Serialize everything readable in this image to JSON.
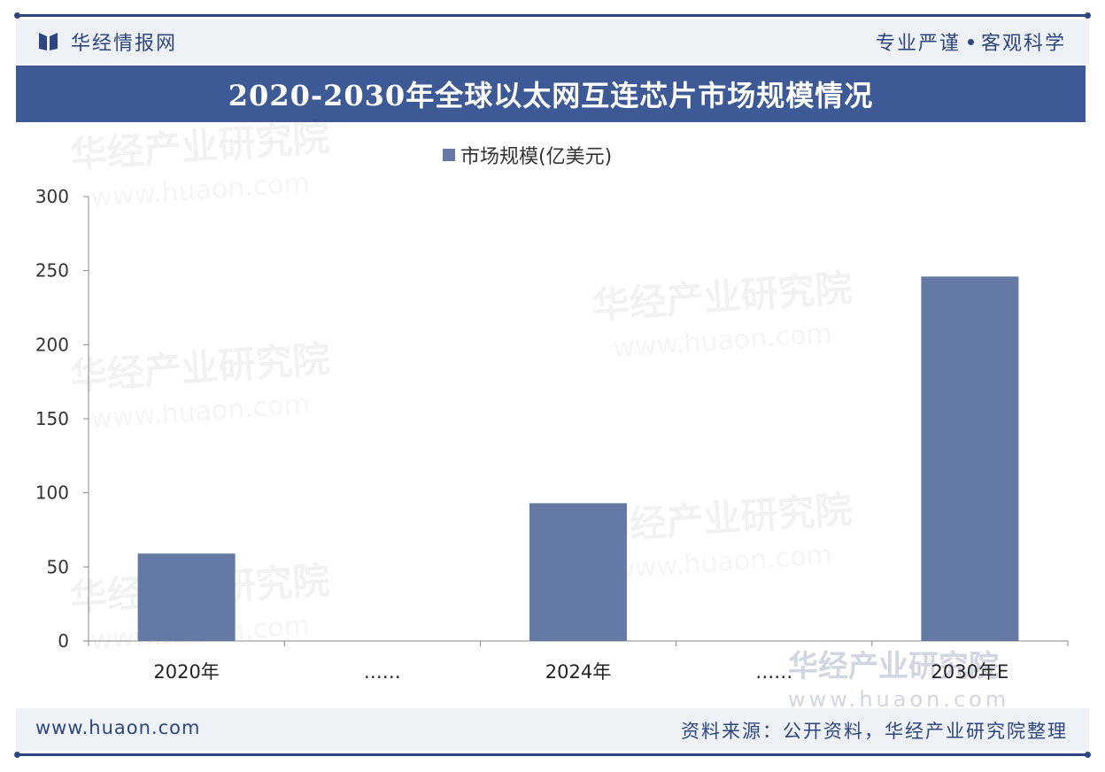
{
  "header": {
    "brand": "华经情报网",
    "slogan_left": "专业严谨",
    "slogan_right": "客观科学"
  },
  "title": "2020-2030年全球以太网互连芯片市场规模情况",
  "watermark": {
    "cn": "华经产业研究院",
    "en": "www.huaon.com"
  },
  "footer": {
    "url": "www.huaon.com",
    "source": "资料来源：公开资料，华经产业研究院整理"
  },
  "colors": {
    "bar": "#6479a3",
    "brand": "#2e4680",
    "title_bar": "#3d5a96"
  },
  "chart_data": {
    "type": "bar",
    "categories": [
      "2020年",
      "……",
      "2024年",
      "……",
      "2030年E"
    ],
    "series": [
      {
        "name": "市场规模(亿美元)",
        "values": [
          59,
          null,
          93,
          null,
          246
        ]
      }
    ],
    "ylim": [
      0,
      300
    ],
    "yticks": [
      0,
      50,
      100,
      150,
      200,
      250,
      300
    ],
    "legend": "top-center",
    "grid": false
  }
}
